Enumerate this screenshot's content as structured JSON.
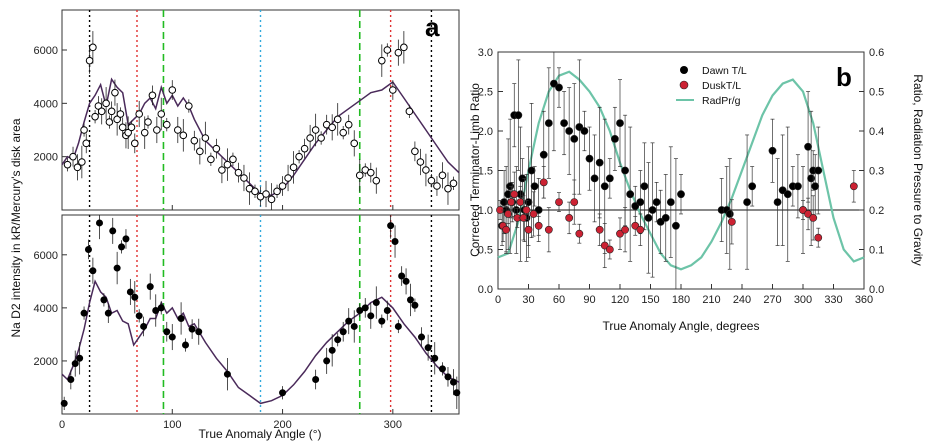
{
  "chart_data": [
    {
      "panel": "a",
      "type": "scatter",
      "panel_label": "a",
      "ylabel": "Na D2 intensity in kR/Mercury's disk area",
      "xlabel": "True Anomaly Angle (°)",
      "xlim": [
        0,
        360
      ],
      "xticks": [
        0,
        100,
        200,
        300
      ],
      "reference_lines": [
        {
          "x": 25,
          "color": "#000000",
          "style": "dotted"
        },
        {
          "x": 68,
          "color": "#e03030",
          "style": "dotted"
        },
        {
          "x": 92,
          "color": "#22bb22",
          "style": "dashed"
        },
        {
          "x": 180,
          "color": "#33aadd",
          "style": "dotted"
        },
        {
          "x": 270,
          "color": "#22bb22",
          "style": "dashed"
        },
        {
          "x": 298,
          "color": "#e03030",
          "style": "dotted"
        },
        {
          "x": 335,
          "color": "#000000",
          "style": "dotted"
        }
      ],
      "subplots": [
        {
          "name": "top",
          "ylim": [
            0,
            7500
          ],
          "yticks": [
            2000,
            4000,
            6000
          ],
          "model": {
            "color": "#4a2a5a",
            "x": [
              0,
              5,
              10,
              15,
              20,
              25,
              30,
              35,
              40,
              45,
              50,
              55,
              60,
              65,
              70,
              75,
              80,
              85,
              90,
              95,
              100,
              105,
              110,
              115,
              120,
              130,
              140,
              150,
              160,
              170,
              180,
              190,
              200,
              210,
              220,
              230,
              240,
              250,
              260,
              270,
              280,
              290,
              300,
              310,
              320,
              330,
              340,
              350,
              360
            ],
            "y": [
              1700,
              2000,
              1900,
              2500,
              3300,
              4000,
              4300,
              4700,
              3900,
              4900,
              4600,
              4400,
              3200,
              3400,
              3600,
              4000,
              4200,
              3800,
              4600,
              4000,
              4300,
              3900,
              4200,
              3900,
              3400,
              2600,
              2200,
              1800,
              1400,
              1000,
              600,
              550,
              800,
              1300,
              1900,
              2500,
              3000,
              3500,
              3800,
              4100,
              4400,
              4500,
              4800,
              4200,
              3600,
              3000,
              2400,
              1800,
              1400
            ]
          },
          "obs": {
            "marker": "open-circle",
            "x": [
              5,
              10,
              14,
              18,
              20,
              22,
              25,
              28,
              30,
              33,
              36,
              40,
              43,
              45,
              48,
              50,
              53,
              55,
              58,
              60,
              63,
              66,
              70,
              75,
              78,
              82,
              86,
              90,
              95,
              100,
              105,
              110,
              115,
              120,
              125,
              130,
              135,
              140,
              145,
              150,
              155,
              160,
              165,
              170,
              175,
              180,
              185,
              190,
              195,
              200,
              205,
              210,
              215,
              220,
              225,
              230,
              235,
              240,
              245,
              250,
              255,
              260,
              265,
              270,
              275,
              280,
              285,
              290,
              295,
              300,
              305,
              310,
              315,
              320,
              325,
              330,
              335,
              340,
              345,
              350,
              355
            ],
            "y": [
              1700,
              2000,
              1600,
              1800,
              3000,
              2500,
              5600,
              6100,
              3500,
              3900,
              3700,
              4000,
              3300,
              3700,
              4400,
              3400,
              3600,
              3100,
              2800,
              2900,
              3100,
              2500,
              3600,
              2900,
              3300,
              4300,
              3000,
              3600,
              3200,
              4500,
              3000,
              2800,
              3900,
              2600,
              2200,
              2700,
              1900,
              2300,
              1500,
              1700,
              1900,
              1400,
              1200,
              800,
              700,
              500,
              600,
              400,
              700,
              900,
              1200,
              1600,
              2000,
              2300,
              2700,
              3000,
              2700,
              3200,
              3100,
              3400,
              2900,
              3200,
              2500,
              1300,
              1500,
              1400,
              1100,
              5600,
              6000,
              4500,
              5900,
              6100,
              3700,
              2200,
              1800,
              1500,
              1100,
              900,
              1300,
              800,
              1000
            ]
          }
        },
        {
          "name": "bottom",
          "ylim": [
            0,
            7500
          ],
          "yticks": [
            2000,
            4000,
            6000
          ],
          "model": {
            "color": "#4a2a5a",
            "x": [
              0,
              5,
              10,
              15,
              20,
              25,
              30,
              35,
              40,
              45,
              50,
              55,
              60,
              65,
              70,
              75,
              80,
              85,
              90,
              95,
              100,
              105,
              110,
              115,
              120,
              130,
              140,
              150,
              160,
              170,
              180,
              190,
              200,
              210,
              220,
              230,
              240,
              250,
              260,
              270,
              280,
              290,
              300,
              310,
              320,
              330,
              340,
              350,
              360
            ],
            "y": [
              1500,
              1300,
              1800,
              2400,
              3200,
              4200,
              5000,
              4600,
              4400,
              3800,
              3900,
              3500,
              3400,
              2600,
              2900,
              3200,
              3600,
              3600,
              4200,
              3800,
              4000,
              3600,
              3800,
              3300,
              3400,
              2700,
              2100,
              1600,
              1000,
              700,
              400,
              500,
              700,
              1100,
              1600,
              2200,
              2700,
              3100,
              3500,
              3800,
              4200,
              4400,
              4000,
              3400,
              2900,
              2300,
              1800,
              1400,
              1200
            ]
          },
          "obs": {
            "marker": "filled-circle",
            "x": [
              2,
              8,
              12,
              16,
              20,
              24,
              28,
              34,
              38,
              42,
              46,
              50,
              54,
              58,
              62,
              66,
              70,
              74,
              80,
              85,
              90,
              95,
              100,
              108,
              112,
              118,
              124,
              150,
              200,
              230,
              240,
              245,
              250,
              255,
              260,
              265,
              270,
              275,
              280,
              285,
              290,
              295,
              298,
              302,
              305,
              308,
              312,
              316,
              320,
              326,
              332,
              338,
              345,
              350,
              355,
              358
            ],
            "y": [
              400,
              1300,
              1900,
              2100,
              3800,
              6200,
              5400,
              7200,
              4300,
              3800,
              6900,
              5500,
              6300,
              6600,
              4600,
              4400,
              3700,
              3300,
              4800,
              3900,
              4000,
              3100,
              2900,
              3600,
              2600,
              3200,
              3100,
              1500,
              800,
              1300,
              2000,
              2400,
              2800,
              3100,
              3500,
              3300,
              3900,
              4000,
              3700,
              4200,
              3500,
              3900,
              7100,
              6500,
              3300,
              5200,
              5000,
              4300,
              4100,
              2900,
              2500,
              2100,
              1700,
              1400,
              1200,
              800
            ]
          }
        }
      ]
    },
    {
      "panel": "b",
      "type": "scatter",
      "panel_label": "b",
      "xlabel": "True Anomaly Angle, degrees",
      "ylabel": "Corrected Terminator-Limb Ratio",
      "y2label": "Ratio, Radiation Pressure to Gravity",
      "xlim": [
        0,
        360
      ],
      "ylim": [
        0,
        3.0
      ],
      "y2lim": [
        0,
        0.6
      ],
      "xticks": [
        0,
        30,
        60,
        90,
        120,
        150,
        180,
        210,
        240,
        270,
        300,
        330,
        360
      ],
      "yticks": [
        0.0,
        0.5,
        1.0,
        1.5,
        2.0,
        2.5,
        3.0
      ],
      "y2ticks": [
        0.0,
        0.1,
        0.2,
        0.3,
        0.4,
        0.5,
        0.6
      ],
      "reference_y": 1.0,
      "legend_position": "top-right",
      "series": [
        {
          "name": "Dawn T/L",
          "marker": "filled-circle",
          "color": "#000000",
          "x": [
            4,
            6,
            8,
            10,
            12,
            14,
            16,
            18,
            20,
            22,
            24,
            26,
            28,
            30,
            33,
            36,
            40,
            45,
            50,
            55,
            60,
            65,
            70,
            75,
            80,
            85,
            90,
            95,
            100,
            105,
            110,
            115,
            120,
            125,
            130,
            135,
            140,
            144,
            148,
            152,
            156,
            160,
            165,
            170,
            175,
            180,
            220,
            225,
            228,
            245,
            250,
            270,
            275,
            280,
            285,
            290,
            295,
            300,
            305,
            308,
            310,
            312,
            315
          ],
          "y": [
            0.8,
            1.1,
            1.0,
            1.2,
            1.3,
            1.1,
            2.2,
            1.0,
            2.2,
            1.2,
            1.4,
            1.0,
            0.9,
            1.1,
            1.5,
            1.3,
            1.0,
            1.7,
            2.1,
            2.6,
            2.55,
            2.1,
            2.0,
            1.9,
            2.05,
            2.0,
            1.65,
            1.4,
            1.6,
            1.3,
            1.4,
            1.9,
            2.1,
            1.5,
            1.2,
            1.05,
            1.1,
            1.3,
            0.9,
            1.0,
            1.1,
            0.85,
            0.9,
            1.1,
            0.8,
            1.2,
            1.0,
            1.0,
            0.95,
            1.1,
            1.3,
            1.75,
            1.1,
            1.25,
            1.2,
            1.3,
            1.3,
            1.0,
            1.8,
            1.4,
            1.5,
            1.3,
            1.5
          ]
        },
        {
          "name": "DuskT/L",
          "marker": "filled-circle",
          "color": "#cc2233",
          "x": [
            2,
            5,
            8,
            10,
            13,
            16,
            19,
            22,
            25,
            28,
            30,
            35,
            40,
            45,
            50,
            60,
            70,
            75,
            80,
            100,
            105,
            110,
            120,
            125,
            135,
            140,
            230,
            300,
            305,
            310,
            315,
            350
          ],
          "y": [
            1.0,
            0.8,
            0.75,
            0.95,
            1.1,
            1.2,
            0.9,
            1.1,
            0.9,
            1.0,
            0.75,
            0.95,
            0.8,
            1.35,
            0.75,
            1.1,
            0.9,
            1.1,
            0.7,
            0.75,
            0.55,
            0.5,
            0.7,
            0.75,
            0.8,
            0.75,
            0.85,
            1.0,
            0.95,
            0.9,
            0.65,
            1.3
          ]
        },
        {
          "name": "RadPr/g",
          "type": "line",
          "axis": "right",
          "color": "#6dc4a8",
          "x": [
            0,
            10,
            20,
            30,
            40,
            50,
            60,
            70,
            80,
            90,
            100,
            110,
            120,
            130,
            140,
            150,
            160,
            170,
            180,
            190,
            200,
            210,
            220,
            230,
            240,
            250,
            260,
            270,
            280,
            290,
            300,
            310,
            320,
            330,
            340,
            350,
            360
          ],
          "y": [
            0.08,
            0.09,
            0.17,
            0.3,
            0.42,
            0.5,
            0.54,
            0.55,
            0.53,
            0.5,
            0.46,
            0.4,
            0.32,
            0.25,
            0.19,
            0.14,
            0.09,
            0.06,
            0.05,
            0.06,
            0.08,
            0.12,
            0.17,
            0.23,
            0.3,
            0.37,
            0.44,
            0.49,
            0.52,
            0.53,
            0.5,
            0.42,
            0.3,
            0.18,
            0.1,
            0.07,
            0.08
          ]
        }
      ]
    }
  ]
}
